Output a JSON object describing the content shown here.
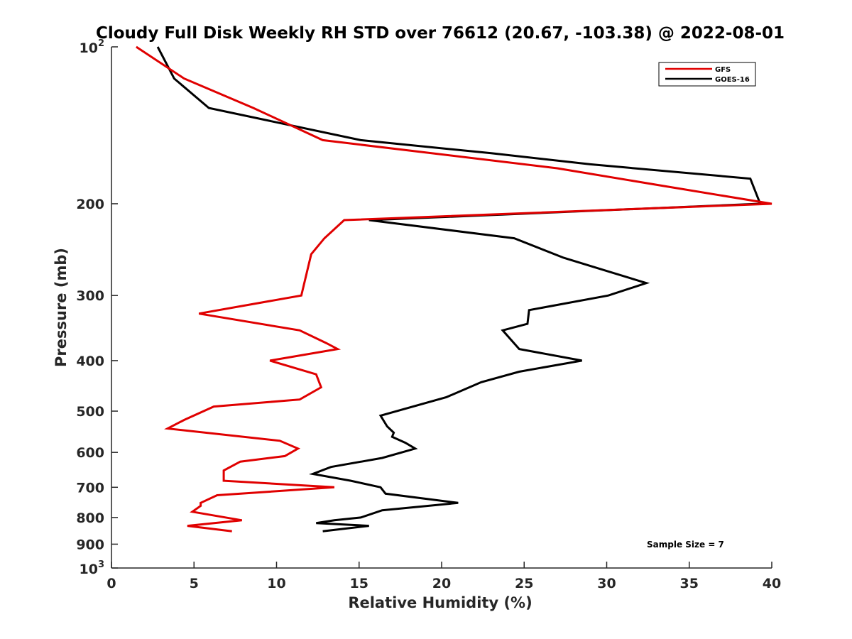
{
  "chart_data": {
    "type": "line",
    "title": "Cloudy Full Disk Weekly RH STD over 76612 (20.67, -103.38) @ 2022-08-01",
    "xlabel": "Relative Humidity (%)",
    "ylabel": "Pressure (mb)",
    "xlim": [
      0,
      40
    ],
    "ylim": [
      100,
      1000
    ],
    "yscale": "log",
    "y_reversed": true,
    "x_ticks": [
      0,
      5,
      10,
      15,
      20,
      25,
      30,
      35,
      40
    ],
    "x_tick_labels": [
      "0",
      "5",
      "10",
      "15",
      "20",
      "25",
      "30",
      "35",
      "40"
    ],
    "y_ticks": [
      200,
      300,
      400,
      500,
      600,
      700,
      800,
      900
    ],
    "y_tick_labels": [
      "200",
      "300",
      "400",
      "500",
      "600",
      "700",
      "800",
      "900"
    ],
    "y_tick_top": {
      "base": "10",
      "exp": "2"
    },
    "y_tick_bottom": {
      "base": "10",
      "exp": "3"
    },
    "legend_position": "top-right",
    "annotation": "Sample Size = 7",
    "series": [
      {
        "name": "GFS",
        "color": "#e00000",
        "points": [
          [
            1.5,
            100
          ],
          [
            4.4,
            115
          ],
          [
            8.6,
            131
          ],
          [
            12.8,
            151
          ],
          [
            27,
            171
          ],
          [
            33.5,
            185
          ],
          [
            40,
            200
          ],
          [
            14.1,
            215
          ],
          [
            12.9,
            233
          ],
          [
            12.1,
            250
          ],
          [
            11.5,
            300
          ],
          [
            5.3,
            325
          ],
          [
            11.4,
            350
          ],
          [
            13,
            370
          ],
          [
            13.7,
            380
          ],
          [
            9.6,
            400
          ],
          [
            12.4,
            425
          ],
          [
            12.7,
            450
          ],
          [
            11.4,
            475
          ],
          [
            6.2,
            490
          ],
          [
            4.4,
            520
          ],
          [
            3.4,
            540
          ],
          [
            10.2,
            570
          ],
          [
            11.3,
            590
          ],
          [
            10.5,
            610
          ],
          [
            7.8,
            625
          ],
          [
            6.8,
            650
          ],
          [
            6.8,
            680
          ],
          [
            13.5,
            700
          ],
          [
            6.4,
            725
          ],
          [
            5.4,
            750
          ],
          [
            5.4,
            760
          ],
          [
            4.9,
            780
          ],
          [
            7.9,
            810
          ],
          [
            4.6,
            830
          ],
          [
            7.3,
            850
          ]
        ]
      },
      {
        "name": "GOES-16",
        "color": "#000000",
        "points": [
          [
            2.8,
            100
          ],
          [
            3.8,
            115
          ],
          [
            5.9,
            131
          ],
          [
            15.1,
            151
          ],
          [
            23,
            160
          ],
          [
            29,
            168
          ],
          [
            38.7,
            179
          ],
          [
            39.3,
            200
          ],
          [
            15.6,
            215
          ],
          [
            24.4,
            233
          ],
          [
            27.4,
            254
          ],
          [
            32.4,
            284
          ],
          [
            30.1,
            300
          ],
          [
            25.3,
            320
          ],
          [
            25.2,
            340
          ],
          [
            23.7,
            350
          ],
          [
            24.7,
            380
          ],
          [
            28.5,
            400
          ],
          [
            24.7,
            420
          ],
          [
            22.4,
            440
          ],
          [
            20.3,
            470
          ],
          [
            16.3,
            510
          ],
          [
            16.7,
            535
          ],
          [
            17.1,
            550
          ],
          [
            17,
            560
          ],
          [
            17.8,
            575
          ],
          [
            18.4,
            590
          ],
          [
            16.4,
            615
          ],
          [
            13.3,
            640
          ],
          [
            12.2,
            660
          ],
          [
            14.5,
            680
          ],
          [
            16.3,
            700
          ],
          [
            16.6,
            720
          ],
          [
            21,
            750
          ],
          [
            16.4,
            775
          ],
          [
            15.1,
            800
          ],
          [
            13.5,
            810
          ],
          [
            12.4,
            820
          ],
          [
            15.6,
            830
          ],
          [
            12.8,
            850
          ]
        ]
      }
    ]
  }
}
